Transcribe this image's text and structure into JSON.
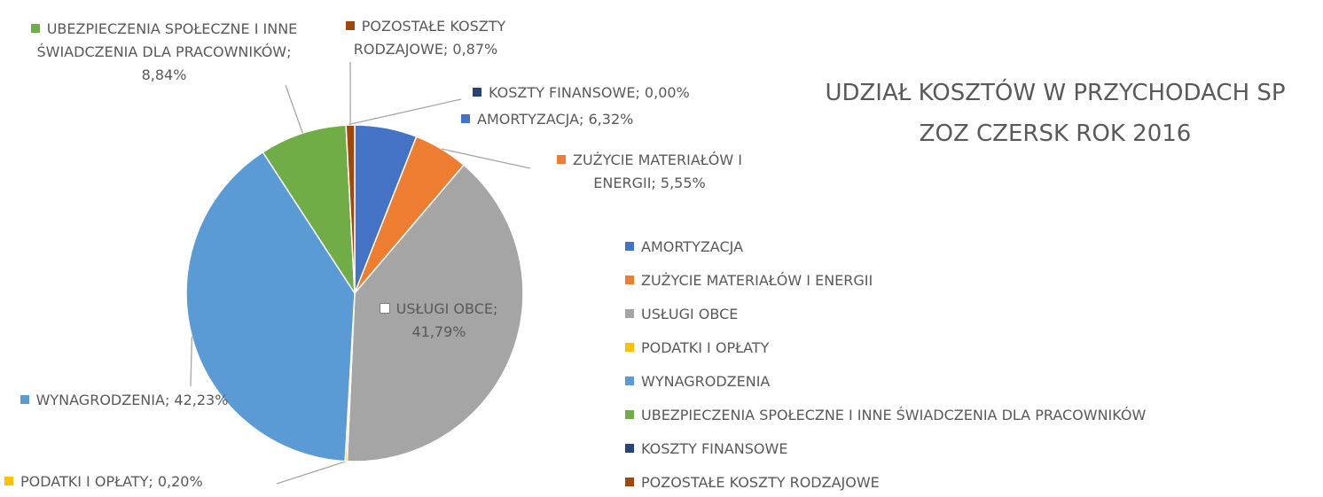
{
  "chart_data": {
    "type": "pie",
    "title": "UDZIAŁ KOSZTÓW W PRZYCHODACH SP ZOZ CZERSK ROK 2016",
    "categories": [
      "AMORTYZACJA",
      "ZUŻYCIE MATERIAŁÓW I ENERGII",
      "USŁUGI OBCE",
      "PODATKI I OPŁATY",
      "WYNAGRODZENIA",
      "UBEZPIECZENIA SPOŁECZNE I INNE ŚWIADCZENIA DLA PRACOWNIKÓW",
      "KOSZTY FINANSOWE",
      "POZOSTAŁE KOSZTY RODZAJOWE"
    ],
    "values": [
      6.32,
      5.55,
      41.79,
      0.2,
      42.23,
      8.84,
      0.0,
      0.87
    ],
    "value_labels": [
      "AMORTYZACJA; 6,32%",
      "ZUŻYCIE MATERIAŁÓW I ENERGII; 5,55%",
      "USŁUGI OBCE; 41,79%",
      "PODATKI I OPŁATY; 0,20%",
      "WYNAGRODZENIA; 42,23%",
      "UBEZPIECZENIA SPOŁECZNE I INNE ŚWIADCZENIA DLA PRACOWNIKÓW; 8,84%",
      "KOSZTY FINANSOWE; 0,00%",
      "POZOSTAŁE KOSZTY RODZAJOWE; 0,87%"
    ],
    "colors": [
      "#4472c4",
      "#ed7d31",
      "#a5a5a5",
      "#ffc000",
      "#5b9bd5",
      "#70ad47",
      "#264478",
      "#9e480e"
    ],
    "legend": "right"
  }
}
